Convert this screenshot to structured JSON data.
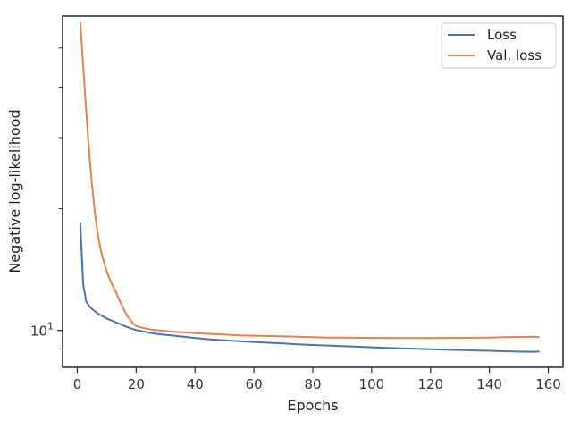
{
  "chart_data": {
    "type": "line",
    "xlabel": "Epochs",
    "ylabel": "Negative log-likelihood",
    "yscale": "log",
    "xlim": [
      -5,
      165
    ],
    "ylim": [
      8.1,
      60
    ],
    "grid": false,
    "legend_position": "top-right",
    "x_ticks": [
      0,
      20,
      40,
      60,
      80,
      100,
      120,
      140,
      160
    ],
    "x_tick_labels": [
      "0",
      "20",
      "40",
      "60",
      "80",
      "100",
      "120",
      "140",
      "160"
    ],
    "y_ticks": [
      10
    ],
    "y_tick_labels": [
      "10"
    ],
    "y_tick_label_exponents": [
      "1"
    ],
    "y_minor_ticks": [
      9,
      20,
      30,
      40,
      50
    ],
    "series": [
      {
        "name": "Loss",
        "color": "#4c72b0",
        "x": [
          1,
          2,
          3,
          4,
          5,
          6,
          7,
          8,
          9,
          10,
          12,
          14,
          16,
          18,
          20,
          22,
          25,
          28,
          31,
          35,
          40,
          45,
          50,
          55,
          60,
          65,
          70,
          75,
          80,
          85,
          90,
          95,
          100,
          105,
          110,
          115,
          120,
          125,
          130,
          135,
          140,
          145,
          150,
          155,
          157
        ],
        "y": [
          18.5,
          13.0,
          11.8,
          11.5,
          11.3,
          11.15,
          11.0,
          10.9,
          10.8,
          10.7,
          10.55,
          10.4,
          10.25,
          10.12,
          10.02,
          9.95,
          9.85,
          9.78,
          9.73,
          9.66,
          9.58,
          9.5,
          9.45,
          9.4,
          9.36,
          9.32,
          9.28,
          9.24,
          9.2,
          9.17,
          9.14,
          9.11,
          9.08,
          9.05,
          9.03,
          9.0,
          8.98,
          8.96,
          8.94,
          8.92,
          8.9,
          8.88,
          8.86,
          8.85,
          8.87
        ]
      },
      {
        "name": "Val. loss",
        "color": "#dd8452",
        "x": [
          1,
          2,
          3,
          4,
          5,
          6,
          7,
          8,
          9,
          10,
          11,
          12,
          13,
          14,
          15,
          16,
          17,
          18,
          19,
          20,
          22,
          25,
          28,
          31,
          35,
          40,
          45,
          50,
          55,
          60,
          65,
          70,
          75,
          80,
          85,
          90,
          95,
          100,
          105,
          110,
          115,
          120,
          125,
          130,
          135,
          140,
          145,
          150,
          155,
          157
        ],
        "y": [
          58,
          45,
          35,
          28,
          23,
          19.5,
          17.3,
          15.8,
          14.8,
          14.0,
          13.4,
          12.9,
          12.5,
          12.0,
          11.6,
          11.2,
          10.85,
          10.6,
          10.4,
          10.25,
          10.15,
          10.05,
          10.0,
          9.95,
          9.9,
          9.85,
          9.8,
          9.76,
          9.72,
          9.7,
          9.68,
          9.66,
          9.64,
          9.62,
          9.6,
          9.6,
          9.59,
          9.58,
          9.58,
          9.57,
          9.57,
          9.57,
          9.58,
          9.58,
          9.59,
          9.6,
          9.62,
          9.63,
          9.64,
          9.63
        ]
      }
    ]
  }
}
